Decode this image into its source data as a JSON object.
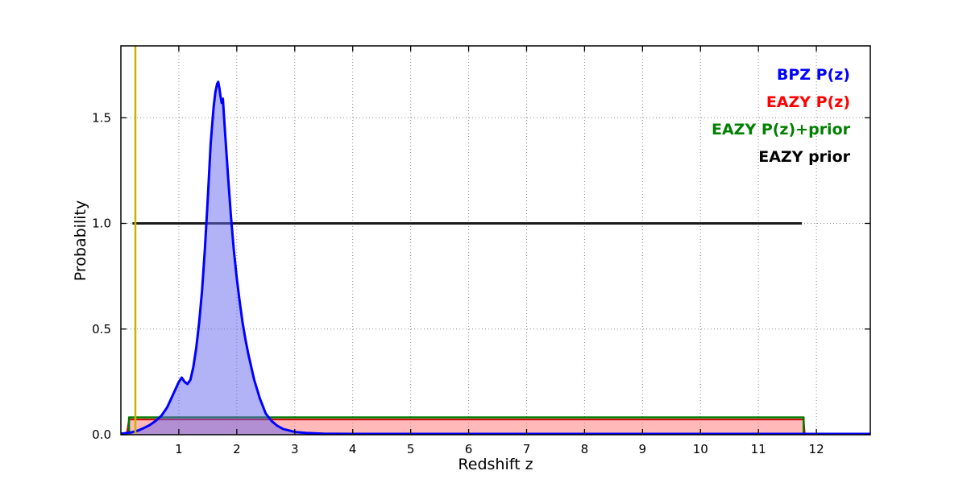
{
  "figure": {
    "background": "#ffffff",
    "axis_color": "#000000"
  },
  "chart_data": {
    "type": "line",
    "title": "",
    "xlabel": "Redshift z",
    "ylabel": "Probability",
    "xlim": [
      0,
      12.93
    ],
    "ylim": [
      0,
      1.84
    ],
    "xticks": [
      1,
      2,
      3,
      4,
      5,
      6,
      7,
      8,
      9,
      10,
      11,
      12
    ],
    "ytick_values": [
      0.0,
      0.5,
      1.0,
      1.5
    ],
    "ytick_labels": [
      "0.0",
      "0.5",
      "1.0",
      "1.5"
    ],
    "grid": true,
    "grid_color": "#888888",
    "legend_position": "top-right inside",
    "legend": [
      {
        "label": "BPZ P(z)",
        "color": "#0000ff"
      },
      {
        "label": "EAZY P(z)",
        "color": "#ff0000"
      },
      {
        "label": "EAZY P(z)+prior",
        "color": "#008000"
      },
      {
        "label": "EAZY prior",
        "color": "#000000"
      }
    ],
    "series": [
      {
        "name": "EAZY prior",
        "color": "#1a1a1a",
        "line_width": 3,
        "fill": false,
        "x": [
          0.2,
          11.75
        ],
        "y": [
          1.0,
          1.0
        ]
      },
      {
        "name": "EAZY P(z)",
        "color": "#cc0000",
        "line_width": 2,
        "fill": true,
        "fill_color": "#ff8080",
        "fill_opacity": 0.55,
        "x": [
          0.1,
          0.14,
          11.78,
          11.8
        ],
        "y": [
          0.0,
          0.072,
          0.072,
          0.0
        ]
      },
      {
        "name": "EAZY P(z)+prior",
        "color": "#007a00",
        "line_width": 2.5,
        "fill": false,
        "x": [
          0.14,
          0.14,
          11.78,
          11.78
        ],
        "y": [
          0.0,
          0.082,
          0.082,
          0.0
        ]
      },
      {
        "name": "BPZ P(z)",
        "color": "#0000ff",
        "line_width": 3,
        "fill": true,
        "fill_color": "#6666ee",
        "fill_opacity": 0.5,
        "x": [
          0.0,
          0.1,
          0.2,
          0.3,
          0.4,
          0.5,
          0.6,
          0.7,
          0.8,
          0.85,
          0.9,
          0.95,
          1.0,
          1.05,
          1.1,
          1.15,
          1.2,
          1.25,
          1.3,
          1.35,
          1.4,
          1.45,
          1.5,
          1.55,
          1.6,
          1.63,
          1.66,
          1.68,
          1.7,
          1.72,
          1.74,
          1.76,
          1.8,
          1.85,
          1.9,
          1.95,
          2.0,
          2.05,
          2.1,
          2.15,
          2.2,
          2.3,
          2.4,
          2.5,
          2.6,
          2.7,
          2.8,
          3.0,
          3.2,
          3.5,
          4.0,
          6.0,
          12.93
        ],
        "y": [
          0.005,
          0.008,
          0.012,
          0.02,
          0.032,
          0.046,
          0.065,
          0.09,
          0.13,
          0.16,
          0.19,
          0.22,
          0.25,
          0.27,
          0.25,
          0.24,
          0.26,
          0.32,
          0.41,
          0.53,
          0.68,
          0.88,
          1.12,
          1.38,
          1.55,
          1.62,
          1.66,
          1.67,
          1.64,
          1.6,
          1.57,
          1.59,
          1.42,
          1.22,
          1.03,
          0.87,
          0.74,
          0.63,
          0.53,
          0.45,
          0.38,
          0.26,
          0.17,
          0.1,
          0.065,
          0.042,
          0.027,
          0.013,
          0.008,
          0.005,
          0.004,
          0.004,
          0.004
        ]
      },
      {
        "name": "spec-z marker",
        "type": "vline",
        "x": 0.25,
        "color": "#c8b400",
        "line_width": 2.5
      }
    ]
  }
}
